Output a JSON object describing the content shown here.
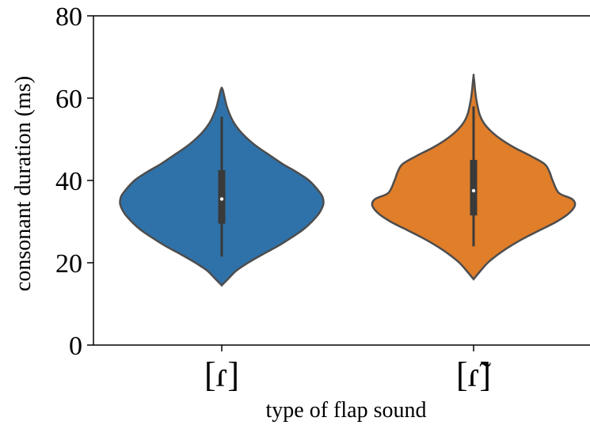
{
  "chart_data": {
    "type": "violin",
    "xlabel": "type of flap sound",
    "ylabel": "consonant duration (ms)",
    "ylim": [
      0,
      80
    ],
    "yticks": [
      0,
      20,
      40,
      60,
      80
    ],
    "grid": false,
    "categories": [
      "[ɾ]",
      "[ɾ̃]"
    ],
    "series": [
      {
        "category": "[ɾ]",
        "color": "#2f72aa",
        "min": 21.5,
        "q1": 29.5,
        "median": 35.5,
        "q3": 42.5,
        "max": 55.5,
        "kde_min": 14.5,
        "kde_max": 62.5,
        "density_profile": [
          [
            14.5,
            0.0
          ],
          [
            16,
            0.06
          ],
          [
            18,
            0.14
          ],
          [
            20,
            0.26
          ],
          [
            22,
            0.4
          ],
          [
            24,
            0.55
          ],
          [
            26,
            0.68
          ],
          [
            28,
            0.8
          ],
          [
            30,
            0.89
          ],
          [
            32,
            0.96
          ],
          [
            34,
            1.0
          ],
          [
            35.5,
            1.0
          ],
          [
            37,
            0.97
          ],
          [
            40,
            0.86
          ],
          [
            42,
            0.74
          ],
          [
            44,
            0.6
          ],
          [
            46,
            0.48
          ],
          [
            48,
            0.36
          ],
          [
            50,
            0.26
          ],
          [
            52,
            0.18
          ],
          [
            54,
            0.12
          ],
          [
            56,
            0.08
          ],
          [
            58,
            0.05
          ],
          [
            60,
            0.03
          ],
          [
            62,
            0.01
          ],
          [
            62.5,
            0.0
          ]
        ]
      },
      {
        "category": "[ɾ̃]",
        "color": "#e07e2a",
        "min": 24.0,
        "q1": 31.5,
        "median": 37.5,
        "q3": 45.0,
        "max": 58.0,
        "kde_min": 16.0,
        "kde_max": 65.5,
        "density_profile": [
          [
            16,
            0.0
          ],
          [
            17.5,
            0.05
          ],
          [
            20,
            0.14
          ],
          [
            22,
            0.24
          ],
          [
            24,
            0.36
          ],
          [
            26,
            0.5
          ],
          [
            28,
            0.66
          ],
          [
            30,
            0.82
          ],
          [
            32,
            0.94
          ],
          [
            34,
            1.0
          ],
          [
            35.5,
            0.97
          ],
          [
            37,
            0.84
          ],
          [
            40,
            0.78
          ],
          [
            42,
            0.75
          ],
          [
            44,
            0.7
          ],
          [
            46,
            0.56
          ],
          [
            48,
            0.4
          ],
          [
            50,
            0.27
          ],
          [
            52,
            0.17
          ],
          [
            54,
            0.1
          ],
          [
            56,
            0.06
          ],
          [
            58,
            0.04
          ],
          [
            60,
            0.025
          ],
          [
            62,
            0.015
          ],
          [
            64,
            0.007
          ],
          [
            65.5,
            0.0
          ]
        ]
      }
    ]
  }
}
